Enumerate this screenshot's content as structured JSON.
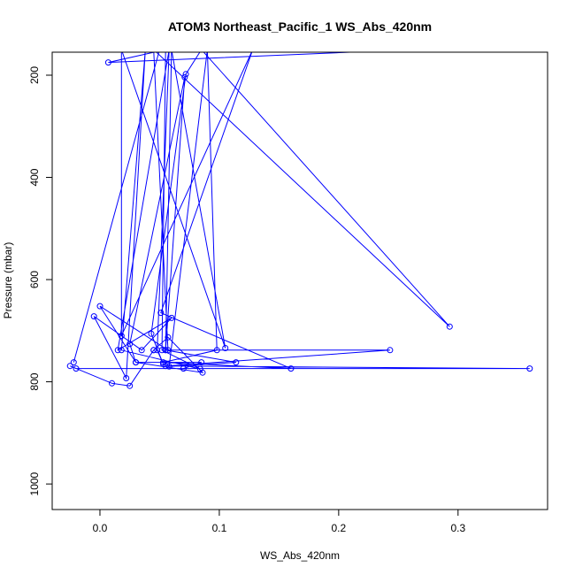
{
  "chart_data": {
    "type": "line",
    "title": "ATOM3 Northeast_Pacific_1 WS_Abs_420nm",
    "xlabel": "WS_Abs_420nm",
    "ylabel": "Pressure (mbar)",
    "xlim": [
      -0.04,
      0.375
    ],
    "ylim": [
      1050,
      155
    ],
    "y_reversed": true,
    "grid": false,
    "x_ticks": [
      0.0,
      0.1,
      0.2,
      0.3
    ],
    "x_tick_labels": [
      "0.0",
      "0.1",
      "0.2",
      "0.3"
    ],
    "y_ticks": [
      200,
      400,
      600,
      800,
      1000
    ],
    "y_tick_labels": [
      "200",
      "400",
      "600",
      "800",
      "1000"
    ],
    "color": "#0000ff",
    "series": [
      {
        "points": [
          [
            -0.022,
            762
          ],
          [
            0.05,
            150
          ],
          [
            0.26,
            150
          ],
          [
            0.007,
            175
          ],
          [
            0.055,
            150
          ],
          [
            0.052,
            738
          ],
          [
            0.084,
            775
          ],
          [
            0.018,
            738
          ],
          [
            0.038,
            150
          ],
          [
            0.022,
            793
          ],
          [
            -0.005,
            672
          ],
          [
            0.035,
            738
          ],
          [
            0.06,
            675
          ],
          [
            0.015,
            738
          ],
          [
            0.058,
            150
          ],
          [
            0.048,
            738
          ],
          [
            0.053,
            765
          ],
          [
            0.043,
            706
          ],
          [
            0.072,
            198
          ],
          [
            0.085,
            150
          ],
          [
            0.293,
            692
          ],
          [
            0.045,
            150
          ],
          [
            0.057,
            738
          ],
          [
            0.0,
            652
          ],
          [
            0.03,
            762
          ],
          [
            0.025,
            726
          ],
          [
            0.071,
            204
          ],
          [
            0.055,
            738
          ],
          [
            0.114,
            762
          ],
          [
            0.058,
            770
          ],
          [
            0.09,
            150
          ],
          [
            0.098,
            738
          ],
          [
            0.053,
            762
          ],
          [
            0.16,
            774
          ],
          [
            0.051,
            665
          ],
          [
            0.128,
            150
          ],
          [
            0.018,
            710
          ],
          [
            0.018,
            150
          ],
          [
            0.105,
            734
          ],
          [
            0.06,
            150
          ],
          [
            0.055,
            738
          ],
          [
            0.243,
            738
          ],
          [
            0.055,
            769
          ],
          [
            0.36,
            774
          ],
          [
            -0.02,
            774
          ],
          [
            -0.025,
            769
          ],
          [
            0.01,
            803
          ],
          [
            0.025,
            808
          ],
          [
            0.045,
            738
          ],
          [
            0.045,
            738
          ],
          [
            0.057,
            713
          ],
          [
            0.086,
            782
          ],
          [
            0.03,
            762
          ],
          [
            0.085,
            762
          ],
          [
            0.07,
            774
          ]
        ]
      }
    ]
  }
}
